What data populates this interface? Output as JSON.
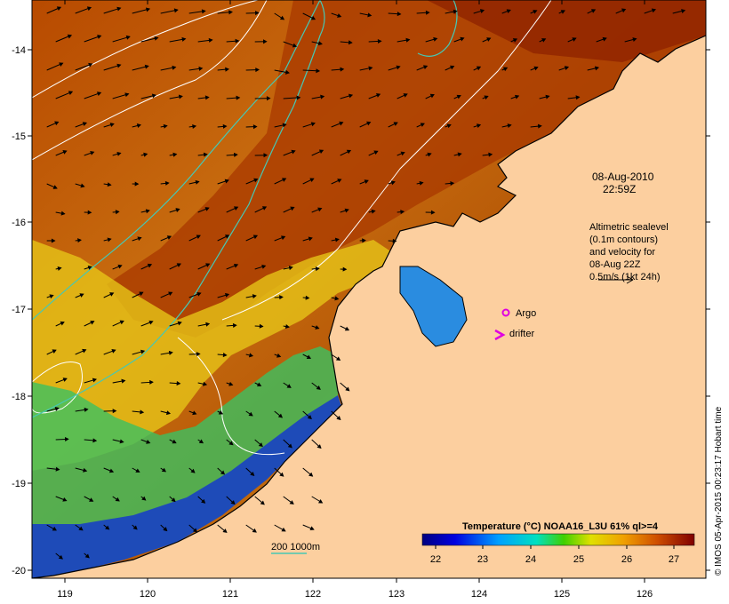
{
  "map": {
    "timestamp_line1": "08-Aug-2010",
    "timestamp_line2": "22:59Z",
    "legend_lines": [
      "Altimetric sealevel",
      "(0.1m contours)",
      "and velocity for",
      "08-Aug 22Z",
      "0.5m/s (1kt 24h)"
    ],
    "argo_label": "Argo",
    "drifter_label": "drifter",
    "bathymetry_label": "200  1000m",
    "colorbar_title": "Temperature (°C) NOAA16_L3U 61% ql>=4",
    "colorbar_ticks": [
      "22",
      "23",
      "24",
      "25",
      "26",
      "27"
    ],
    "lon_ticks": [
      "119",
      "120",
      "121",
      "122",
      "123",
      "124",
      "125",
      "126"
    ],
    "lat_ticks": [
      "-14",
      "-15",
      "-16",
      "-17",
      "-18",
      "-19",
      "-20"
    ],
    "credit": "© IMOS 05-Apr-2015 00:23:17 Hobart time",
    "colors": {
      "land": "#fccf9f",
      "warm": "#a83400",
      "cold": "#1e4bb8",
      "contour": "#ffffff",
      "bathymetry": "#46c8b4",
      "argo": "#e000e0"
    }
  }
}
